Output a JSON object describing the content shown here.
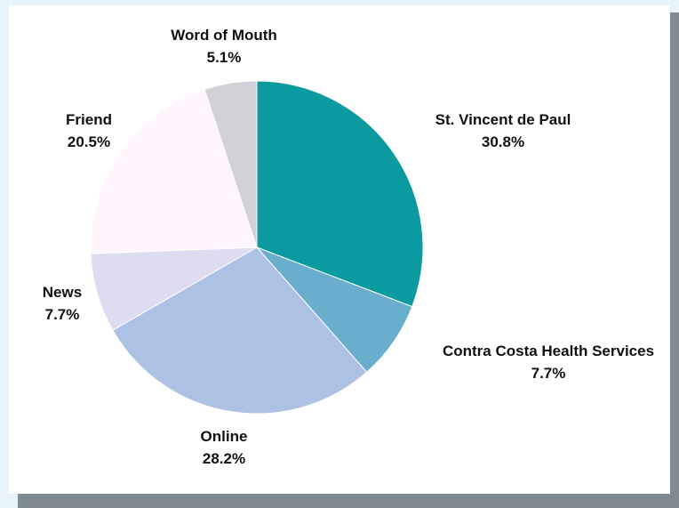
{
  "chart_data": {
    "type": "pie",
    "start_angle_deg": 0,
    "direction": "clockwise",
    "slices": [
      {
        "label": "St. Vincent de Paul",
        "value": 30.8,
        "display": "30.8%",
        "color": "#0b9aa0"
      },
      {
        "label": "Contra Costa Health Services",
        "value": 7.7,
        "display": "7.7%",
        "color": "#6aaecd"
      },
      {
        "label": "Online",
        "value": 28.2,
        "display": "28.2%",
        "color": "#adc1e5"
      },
      {
        "label": "News",
        "value": 7.7,
        "display": "7.7%",
        "color": "#dedcf0"
      },
      {
        "label": "Friend",
        "value": 20.5,
        "display": "20.5%",
        "color": "#fff6fd"
      },
      {
        "label": "Word of Mouth",
        "value": 5.1,
        "display": "5.1%",
        "color": "#d3d1d8"
      }
    ]
  }
}
